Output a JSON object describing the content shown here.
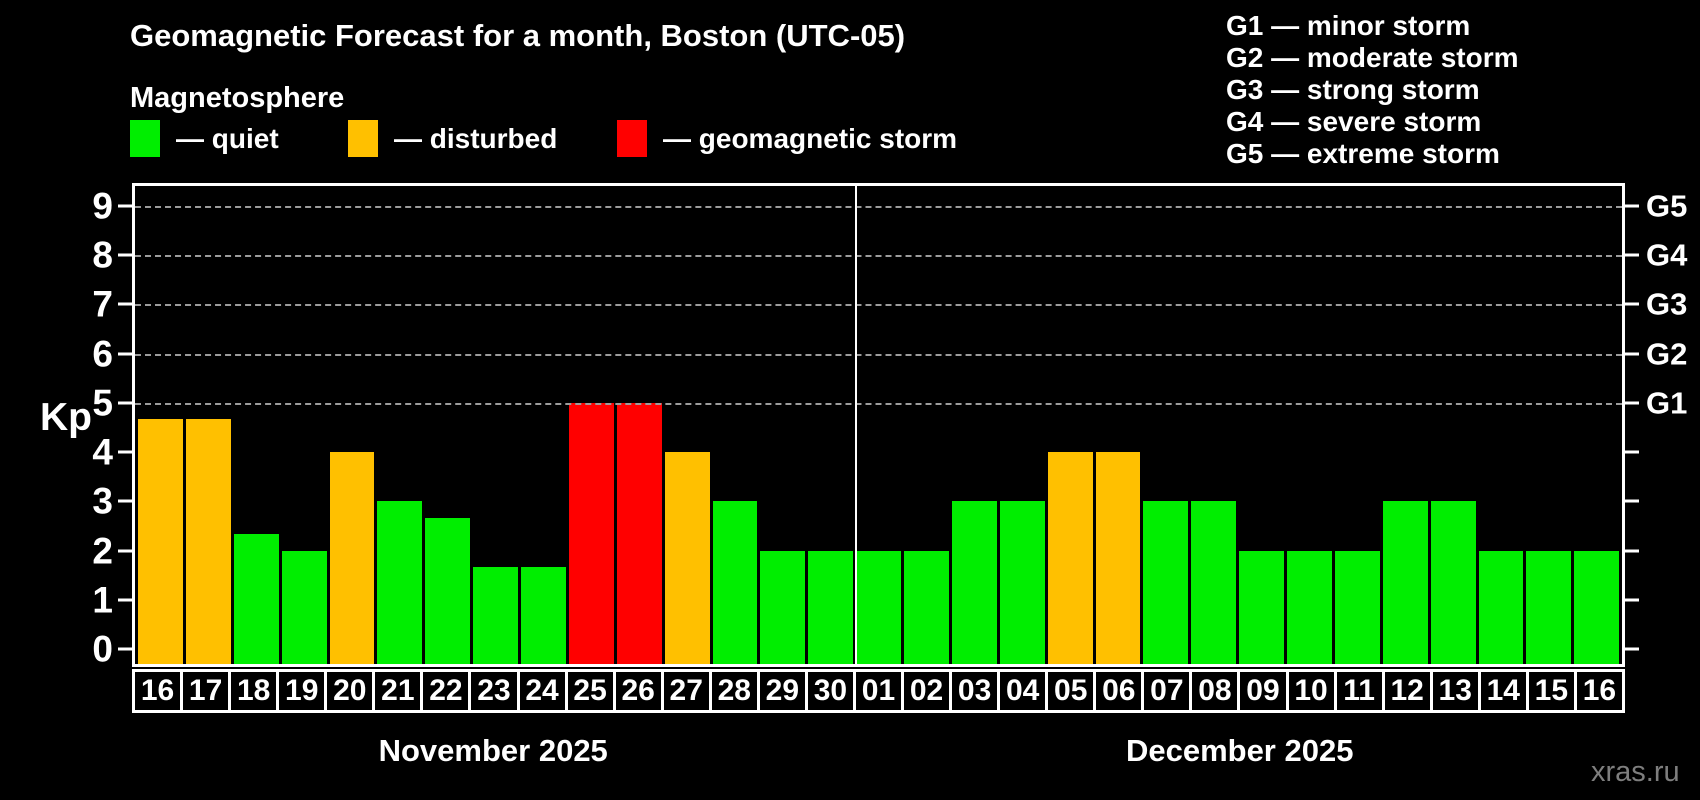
{
  "header": {
    "title": "Geomagnetic Forecast for a month, Boston (UTC-05)",
    "subtitle": "Magnetosphere"
  },
  "legend": {
    "items": [
      {
        "key": "quiet",
        "label": "— quiet"
      },
      {
        "key": "disturbed",
        "label": "— disturbed"
      },
      {
        "key": "storm",
        "label": "— geomagnetic storm"
      }
    ]
  },
  "storm_scale_legend": {
    "lines": [
      "G1 — minor storm",
      "G2 — moderate storm",
      "G3 — strong storm",
      "G4 — severe storm",
      "G5 — extreme storm"
    ]
  },
  "colors": {
    "quiet": "#00ee00",
    "disturbed": "#ffc000",
    "storm": "#ff0000",
    "gridline": "#9c9c9c",
    "axis": "#ffffff",
    "watermark_text": "#7e7e7e"
  },
  "watermark": "xras.ru",
  "chart_data": {
    "type": "bar",
    "title": "Geomagnetic Forecast for a month, Boston (UTC-05)",
    "ylabel": "Kp",
    "ylim": [
      -0.3,
      9.4
    ],
    "y_ticks": [
      "0",
      "1",
      "2",
      "3",
      "4",
      "5",
      "6",
      "7",
      "8",
      "9"
    ],
    "gridlines": [
      5,
      6,
      7,
      8,
      9
    ],
    "grid": "dashed, only at storm levels G1–G5",
    "legend_position": "top",
    "right_axis_labels": [
      {
        "kp": 5,
        "label": "G1"
      },
      {
        "kp": 6,
        "label": "G2"
      },
      {
        "kp": 7,
        "label": "G3"
      },
      {
        "kp": 8,
        "label": "G4"
      },
      {
        "kp": 9,
        "label": "G5"
      }
    ],
    "months": [
      {
        "label": "November 2025",
        "bars": [
          {
            "day": "16",
            "kp": 4.67,
            "level": "disturbed"
          },
          {
            "day": "17",
            "kp": 4.67,
            "level": "disturbed"
          },
          {
            "day": "18",
            "kp": 2.33,
            "level": "quiet"
          },
          {
            "day": "19",
            "kp": 2.0,
            "level": "quiet"
          },
          {
            "day": "20",
            "kp": 4.0,
            "level": "disturbed"
          },
          {
            "day": "21",
            "kp": 3.0,
            "level": "quiet"
          },
          {
            "day": "22",
            "kp": 2.67,
            "level": "quiet"
          },
          {
            "day": "23",
            "kp": 1.67,
            "level": "quiet"
          },
          {
            "day": "24",
            "kp": 1.67,
            "level": "quiet"
          },
          {
            "day": "25",
            "kp": 5.0,
            "level": "storm"
          },
          {
            "day": "26",
            "kp": 5.0,
            "level": "storm"
          },
          {
            "day": "27",
            "kp": 4.0,
            "level": "disturbed"
          },
          {
            "day": "28",
            "kp": 3.0,
            "level": "quiet"
          },
          {
            "day": "29",
            "kp": 2.0,
            "level": "quiet"
          },
          {
            "day": "30",
            "kp": 2.0,
            "level": "quiet"
          }
        ]
      },
      {
        "label": "December 2025",
        "bars": [
          {
            "day": "01",
            "kp": 2.0,
            "level": "quiet"
          },
          {
            "day": "02",
            "kp": 2.0,
            "level": "quiet"
          },
          {
            "day": "03",
            "kp": 3.0,
            "level": "quiet"
          },
          {
            "day": "04",
            "kp": 3.0,
            "level": "quiet"
          },
          {
            "day": "05",
            "kp": 4.0,
            "level": "disturbed"
          },
          {
            "day": "06",
            "kp": 4.0,
            "level": "disturbed"
          },
          {
            "day": "07",
            "kp": 3.0,
            "level": "quiet"
          },
          {
            "day": "08",
            "kp": 3.0,
            "level": "quiet"
          },
          {
            "day": "09",
            "kp": 2.0,
            "level": "quiet"
          },
          {
            "day": "10",
            "kp": 2.0,
            "level": "quiet"
          },
          {
            "day": "11",
            "kp": 2.0,
            "level": "quiet"
          },
          {
            "day": "12",
            "kp": 3.0,
            "level": "quiet"
          },
          {
            "day": "13",
            "kp": 3.0,
            "level": "quiet"
          },
          {
            "day": "14",
            "kp": 2.0,
            "level": "quiet"
          },
          {
            "day": "15",
            "kp": 2.0,
            "level": "quiet"
          },
          {
            "day": "16",
            "kp": 2.0,
            "level": "quiet"
          }
        ]
      }
    ]
  }
}
